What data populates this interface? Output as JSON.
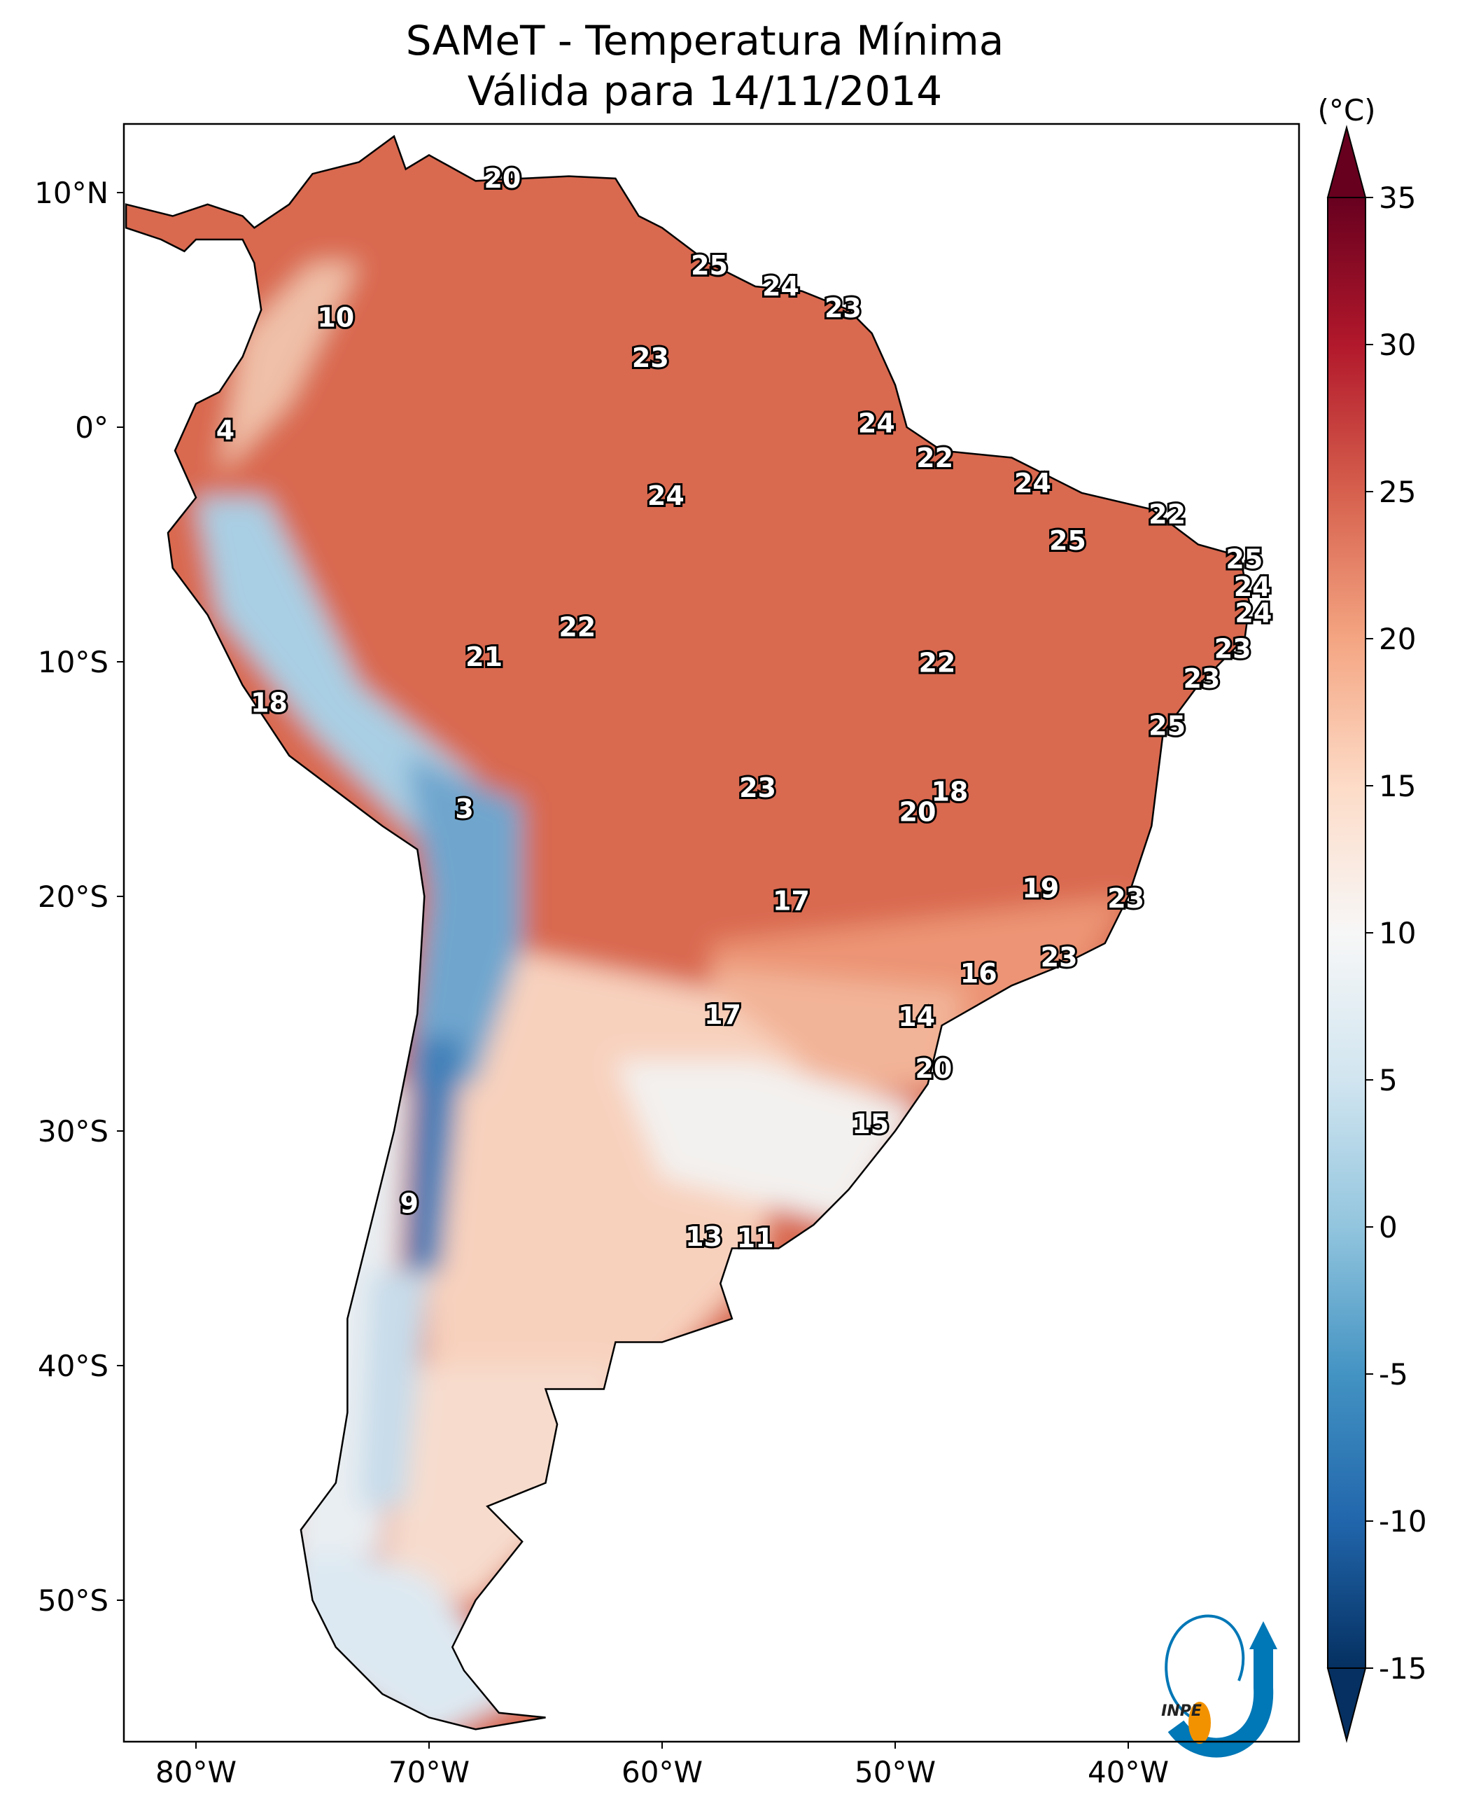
{
  "title": {
    "line1": "SAMeT - Temperatura Mínima",
    "line2": "Válida para 14/11/2014"
  },
  "colorbar": {
    "unit_label": "(°C)",
    "ticks": [
      "35",
      "30",
      "25",
      "20",
      "15",
      "10",
      "5",
      "0",
      "-5",
      "-10",
      "-15"
    ],
    "tick_values": [
      35,
      30,
      25,
      20,
      15,
      10,
      5,
      0,
      -5,
      -10,
      -15
    ],
    "range": [
      -15,
      35
    ],
    "extend": "both",
    "colormap": "RdBu_r",
    "color_stops": [
      {
        "v": -15,
        "c": "#053061"
      },
      {
        "v": -10,
        "c": "#2166ac"
      },
      {
        "v": -5,
        "c": "#4393c3"
      },
      {
        "v": 0,
        "c": "#92c5de"
      },
      {
        "v": 5,
        "c": "#d1e5f0"
      },
      {
        "v": 10,
        "c": "#f7f7f7"
      },
      {
        "v": 15,
        "c": "#fddbc7"
      },
      {
        "v": 20,
        "c": "#f4a582"
      },
      {
        "v": 25,
        "c": "#d6604d"
      },
      {
        "v": 30,
        "c": "#b2182b"
      },
      {
        "v": 35,
        "c": "#67001f"
      }
    ]
  },
  "axes": {
    "x_ticks": [
      {
        "label": "80°W",
        "lon": -80
      },
      {
        "label": "70°W",
        "lon": -70
      },
      {
        "label": "60°W",
        "lon": -60
      },
      {
        "label": "50°W",
        "lon": -50
      },
      {
        "label": "40°W",
        "lon": -40
      }
    ],
    "y_ticks": [
      {
        "label": "10°N",
        "lat": 10
      },
      {
        "label": "0°",
        "lat": 0
      },
      {
        "label": "10°S",
        "lat": -10
      },
      {
        "label": "20°S",
        "lat": -20
      },
      {
        "label": "30°S",
        "lat": -30
      },
      {
        "label": "40°S",
        "lat": -40
      },
      {
        "label": "50°S",
        "lat": -50
      }
    ],
    "lon_range": [
      -83.1,
      -32.7
    ],
    "lat_range": [
      -56.6,
      12.2
    ]
  },
  "temperature_labels": [
    {
      "t": "20",
      "lon": -66.85,
      "lat": 10.6
    },
    {
      "t": "25",
      "lon": -57.97,
      "lat": 6.9
    },
    {
      "t": "24",
      "lon": -54.91,
      "lat": 6.0
    },
    {
      "t": "23",
      "lon": -52.24,
      "lat": 5.07
    },
    {
      "t": "10",
      "lon": -74.0,
      "lat": 4.67
    },
    {
      "t": "23",
      "lon": -60.5,
      "lat": 2.96
    },
    {
      "t": "4",
      "lon": -78.74,
      "lat": -0.13
    },
    {
      "t": "24",
      "lon": -50.8,
      "lat": 0.16
    },
    {
      "t": "22",
      "lon": -48.3,
      "lat": -1.31
    },
    {
      "t": "24",
      "lon": -44.1,
      "lat": -2.39
    },
    {
      "t": "24",
      "lon": -59.84,
      "lat": -2.93
    },
    {
      "t": "22",
      "lon": -38.33,
      "lat": -3.71
    },
    {
      "t": "25",
      "lon": -42.6,
      "lat": -4.84
    },
    {
      "t": "25",
      "lon": -35.02,
      "lat": -5.62
    },
    {
      "t": "24",
      "lon": -34.68,
      "lat": -6.8
    },
    {
      "t": "24",
      "lon": -34.63,
      "lat": -7.93
    },
    {
      "t": "22",
      "lon": -63.64,
      "lat": -8.52
    },
    {
      "t": "23",
      "lon": -35.52,
      "lat": -9.45
    },
    {
      "t": "21",
      "lon": -67.64,
      "lat": -9.79
    },
    {
      "t": "22",
      "lon": -48.2,
      "lat": -10.04
    },
    {
      "t": "23",
      "lon": -36.85,
      "lat": -10.72
    },
    {
      "t": "18",
      "lon": -76.86,
      "lat": -11.75
    },
    {
      "t": "25",
      "lon": -38.33,
      "lat": -12.73
    },
    {
      "t": "23",
      "lon": -55.9,
      "lat": -15.38
    },
    {
      "t": "18",
      "lon": -47.66,
      "lat": -15.53
    },
    {
      "t": "3",
      "lon": -68.48,
      "lat": -16.27
    },
    {
      "t": "20",
      "lon": -49.04,
      "lat": -16.41
    },
    {
      "t": "19",
      "lon": -43.76,
      "lat": -19.65
    },
    {
      "t": "23",
      "lon": -40.1,
      "lat": -20.09
    },
    {
      "t": "17",
      "lon": -54.46,
      "lat": -20.19
    },
    {
      "t": "23",
      "lon": -42.97,
      "lat": -22.59
    },
    {
      "t": "16",
      "lon": -46.42,
      "lat": -23.28
    },
    {
      "t": "17",
      "lon": -57.4,
      "lat": -25.04
    },
    {
      "t": "14",
      "lon": -49.08,
      "lat": -25.14
    },
    {
      "t": "20",
      "lon": -48.35,
      "lat": -27.35
    },
    {
      "t": "15",
      "lon": -51.06,
      "lat": -29.7
    },
    {
      "t": "9",
      "lon": -70.85,
      "lat": -33.09
    },
    {
      "t": "13",
      "lon": -58.21,
      "lat": -34.51
    },
    {
      "t": "11",
      "lon": -56.0,
      "lat": -34.56
    }
  ],
  "logo": {
    "text": "INPE",
    "blue": "#0077b6",
    "orange": "#f39200"
  }
}
